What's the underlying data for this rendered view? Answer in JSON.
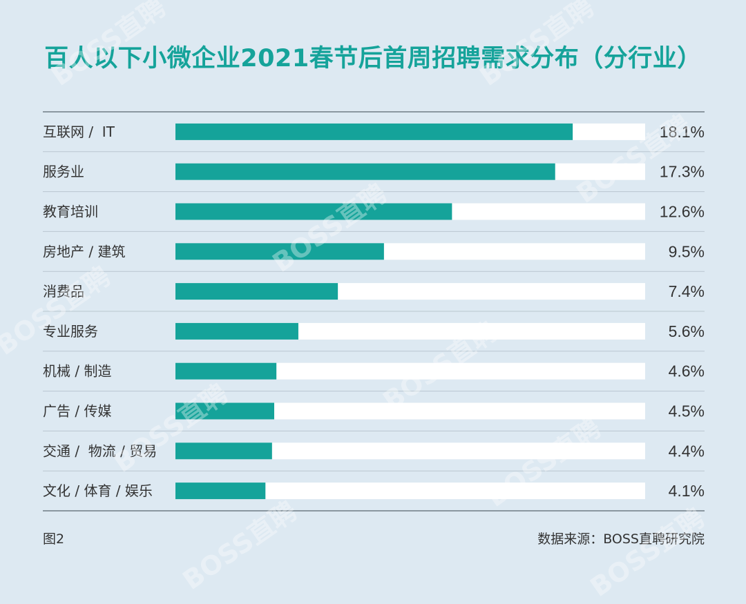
{
  "title": "百人以下小微企业2021春节后首周招聘需求分布（分行业）",
  "figure_label": "图2",
  "source": "数据来源：BOSS直聘研究院",
  "watermark": "BOSS直聘",
  "colors": {
    "background": "#dde9f2",
    "bar": "#15a39a",
    "track": "#ffffff",
    "title": "#15a39a",
    "text": "#333333",
    "divider": "#8c9aa3"
  },
  "chart_data": {
    "type": "bar",
    "orientation": "horizontal",
    "title": "百人以下小微企业2021春节后首周招聘需求分布（分行业）",
    "categories": [
      "互联网 /  IT",
      "服务业",
      "教育培训",
      "房地产 / 建筑",
      "消费品",
      "专业服务",
      "机械 / 制造",
      "广告 / 传媒",
      "交通 /  物流 / 贸易",
      "文化 / 体育 / 娱乐"
    ],
    "values": [
      18.1,
      17.3,
      12.6,
      9.5,
      7.4,
      5.6,
      4.6,
      4.5,
      4.4,
      4.1
    ],
    "value_labels": [
      "18.1%",
      "17.3%",
      "12.6%",
      "9.5%",
      "7.4%",
      "5.6%",
      "4.6%",
      "4.5%",
      "4.4%",
      "4.1%"
    ],
    "unit": "%",
    "xlim": [
      0,
      21.4
    ],
    "grid": false,
    "legend": "none"
  }
}
